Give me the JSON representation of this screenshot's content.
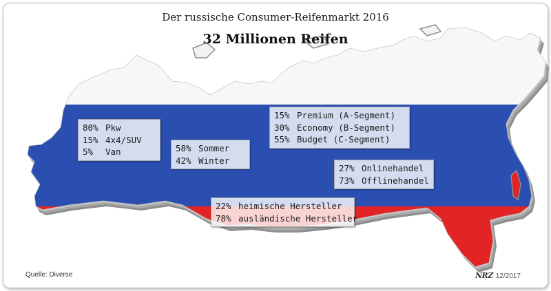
{
  "chart_data": {
    "type": "table",
    "title": "Der russische Consumer-Reifenmarkt 2016",
    "subtitle": "32 Millionen Reifen",
    "groups": [
      {
        "rows": [
          {
            "value": "80%",
            "label": "Pkw"
          },
          {
            "value": "15%",
            "label": "4x4/SUV"
          },
          {
            "value": "5%",
            "label": "Van"
          }
        ]
      },
      {
        "rows": [
          {
            "value": "58%",
            "label": "Sommer"
          },
          {
            "value": "42%",
            "label": "Winter"
          }
        ]
      },
      {
        "rows": [
          {
            "value": "15%",
            "label": "Premium (A-Segment)"
          },
          {
            "value": "30%",
            "label": "Economy (B-Segment)"
          },
          {
            "value": "55%",
            "label": "Budget (C-Segment)"
          }
        ]
      },
      {
        "rows": [
          {
            "value": "27%",
            "label": "Onlinehandel"
          },
          {
            "value": "73%",
            "label": "Offlinehandel"
          }
        ]
      },
      {
        "rows": [
          {
            "value": "22%",
            "label": "heimische Hersteller"
          },
          {
            "value": "78%",
            "label": "ausländische Hersteller"
          }
        ]
      }
    ]
  },
  "footer": {
    "source": "Quelle: Diverse",
    "logo": "NRZ",
    "date": "12/2017"
  },
  "colors": {
    "flag_white": "#f7f7f7",
    "flag_blue": "#2a4fb0",
    "flag_red": "#e32424",
    "extrusion": "#9a9a9a"
  }
}
